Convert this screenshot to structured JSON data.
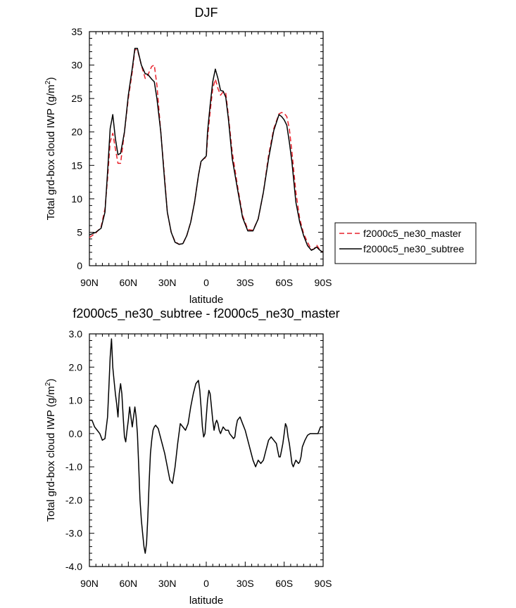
{
  "chart_data": [
    {
      "type": "line",
      "title": "DJF",
      "xlabel": "latitude",
      "ylabel": "Total grd-box cloud IWP (g/m~S~2~N~)",
      "xlim": [
        90,
        -90
      ],
      "ylim": [
        0,
        35
      ],
      "x_ticks": [
        90,
        60,
        30,
        0,
        -30,
        -60,
        -90
      ],
      "x_tick_labels": [
        "90N",
        "60N",
        "30N",
        "0",
        "30S",
        "60S",
        "90S"
      ],
      "y_ticks": [
        0,
        5,
        10,
        15,
        20,
        25,
        30,
        35
      ],
      "y_tick_labels": [
        "0",
        "5",
        "10",
        "15",
        "20",
        "25",
        "30",
        "35"
      ],
      "legend": "right",
      "grid": false,
      "series": [
        {
          "name": "f2000c5_ne30_master",
          "color": "#e8202a",
          "dash": "dashed",
          "x": [
            90,
            85,
            81,
            78,
            76,
            74,
            72,
            70,
            68,
            66,
            63,
            60,
            57,
            55,
            53,
            50,
            47,
            45,
            42,
            40,
            38,
            35,
            32,
            30,
            27,
            24,
            21,
            18,
            15,
            12,
            9,
            6,
            4,
            2,
            0,
            -1,
            -3,
            -5,
            -7,
            -9,
            -11,
            -13,
            -15,
            -17,
            -20,
            -24,
            -28,
            -32,
            -36,
            -40,
            -44,
            -48,
            -52,
            -56,
            -58,
            -60,
            -62,
            -64,
            -66,
            -69,
            -72,
            -75,
            -78,
            -81,
            -83,
            -85,
            -87,
            -89,
            -90
          ],
          "y": [
            4.2,
            4.9,
            5.8,
            8.5,
            13.0,
            18.5,
            19.8,
            17.5,
            15.3,
            15.3,
            20.0,
            25.0,
            29.0,
            32.3,
            32.3,
            30.0,
            28.0,
            28.5,
            29.8,
            30.0,
            27.0,
            20.0,
            13.0,
            8.0,
            5.0,
            3.6,
            3.2,
            3.3,
            4.5,
            6.5,
            9.5,
            13.5,
            15.6,
            16.0,
            16.2,
            19.0,
            23.0,
            26.5,
            27.9,
            26.5,
            25.5,
            26.0,
            25.8,
            22.5,
            17.0,
            12.0,
            7.5,
            5.4,
            5.3,
            7.0,
            11.0,
            16.5,
            20.5,
            22.7,
            22.9,
            22.8,
            22.3,
            20.5,
            17.0,
            11.0,
            7.0,
            4.8,
            3.5,
            2.4,
            2.5,
            3.1,
            2.5,
            2.1,
            2.1
          ]
        },
        {
          "name": "f2000c5_ne30_subtree",
          "color": "#000000",
          "dash": "solid",
          "x": [
            90,
            85,
            81,
            78,
            76,
            74,
            72,
            70,
            68,
            66,
            63,
            60,
            57,
            55,
            53,
            50,
            47,
            45,
            42,
            40,
            38,
            35,
            32,
            30,
            27,
            24,
            21,
            18,
            15,
            12,
            9,
            6,
            4,
            2,
            0,
            -1,
            -3,
            -5,
            -7,
            -9,
            -11,
            -13,
            -15,
            -17,
            -20,
            -24,
            -28,
            -32,
            -36,
            -40,
            -44,
            -48,
            -52,
            -56,
            -58,
            -60,
            -62,
            -64,
            -66,
            -69,
            -72,
            -75,
            -78,
            -81,
            -83,
            -85,
            -87,
            -89,
            -90
          ],
          "y": [
            4.6,
            5.0,
            5.6,
            8.0,
            14.0,
            20.5,
            22.6,
            19.0,
            16.6,
            16.8,
            20.0,
            25.5,
            29.5,
            32.5,
            32.5,
            30.0,
            28.7,
            28.6,
            27.9,
            27.5,
            25.0,
            20.0,
            12.5,
            8.0,
            5.0,
            3.5,
            3.2,
            3.3,
            4.5,
            6.5,
            9.5,
            13.5,
            15.6,
            16.0,
            16.4,
            20.0,
            24.0,
            27.5,
            29.4,
            28.0,
            26.2,
            26.1,
            25.2,
            22.0,
            16.0,
            11.5,
            7.2,
            5.2,
            5.2,
            7.0,
            11.0,
            16.0,
            20.2,
            22.6,
            22.3,
            21.8,
            21.0,
            18.5,
            15.5,
            9.5,
            6.5,
            4.5,
            3.0,
            2.3,
            2.5,
            2.8,
            2.4,
            2.1,
            2.1
          ]
        }
      ]
    },
    {
      "type": "line",
      "title": "f2000c5_ne30_subtree - f2000c5_ne30_master",
      "xlabel": "latitude",
      "ylabel": "Total grd-box cloud IWP (g/m~S~2~N~)",
      "xlim": [
        90,
        -90
      ],
      "ylim": [
        -4,
        3
      ],
      "x_ticks": [
        90,
        60,
        30,
        0,
        -30,
        -60,
        -90
      ],
      "x_tick_labels": [
        "90N",
        "60N",
        "30N",
        "0",
        "30S",
        "60S",
        "90S"
      ],
      "y_ticks": [
        -4,
        -3,
        -2,
        -1,
        0,
        1,
        2,
        3
      ],
      "y_tick_labels": [
        "-4.0",
        "-3.0",
        "-2.0",
        "-1.0",
        "0.0",
        "1.0",
        "2.0",
        "3.0"
      ],
      "grid": false,
      "series": [
        {
          "color": "#000000",
          "dash": "solid",
          "x": [
            90,
            88,
            86,
            84,
            82,
            80,
            78,
            76,
            75,
            74,
            73,
            72,
            71,
            70,
            69,
            68,
            67,
            66,
            65,
            64,
            63,
            62,
            61,
            60,
            59,
            58,
            57,
            56,
            55,
            54,
            53,
            52,
            51,
            50,
            49,
            48,
            47,
            46,
            45,
            44,
            43,
            42,
            41,
            40,
            39,
            38,
            37,
            36,
            34,
            32,
            30,
            28,
            26,
            24,
            22,
            20,
            18,
            16,
            14,
            12,
            10,
            8,
            6,
            5,
            4,
            3,
            2,
            1,
            0,
            -1,
            -2,
            -3,
            -4,
            -5,
            -6,
            -7,
            -8,
            -9,
            -10,
            -11,
            -12,
            -13,
            -14,
            -15,
            -16,
            -17,
            -18,
            -19,
            -20,
            -21,
            -22,
            -23,
            -24,
            -26,
            -28,
            -30,
            -32,
            -34,
            -36,
            -38,
            -40,
            -42,
            -44,
            -46,
            -48,
            -50,
            -52,
            -54,
            -55,
            -56,
            -57,
            -58,
            -59,
            -60,
            -61,
            -62,
            -63,
            -64,
            -65,
            -66,
            -67,
            -68,
            -69,
            -70,
            -71,
            -72,
            -73,
            -74,
            -76,
            -78,
            -80,
            -82,
            -84,
            -86,
            -88,
            -90
          ],
          "y": [
            0.4,
            0.4,
            0.2,
            0.1,
            0.0,
            -0.2,
            -0.15,
            0.5,
            1.4,
            2.3,
            2.85,
            2.0,
            1.6,
            1.2,
            0.9,
            0.5,
            1.2,
            1.5,
            1.2,
            0.5,
            -0.1,
            -0.25,
            0.1,
            0.4,
            0.8,
            0.5,
            0.2,
            0.5,
            0.8,
            0.5,
            0.0,
            -1.0,
            -2.0,
            -2.6,
            -3.0,
            -3.4,
            -3.6,
            -3.3,
            -2.5,
            -1.5,
            -0.6,
            -0.2,
            0.1,
            0.2,
            0.25,
            0.2,
            0.15,
            0.0,
            -0.3,
            -0.6,
            -1.0,
            -1.4,
            -1.5,
            -1.0,
            -0.3,
            0.3,
            0.2,
            0.1,
            0.3,
            0.8,
            1.2,
            1.5,
            1.6,
            1.3,
            0.8,
            0.2,
            -0.1,
            0.0,
            0.5,
            1.0,
            1.3,
            1.2,
            0.8,
            0.4,
            0.1,
            0.3,
            0.4,
            0.3,
            0.1,
            0.0,
            0.1,
            0.2,
            0.15,
            0.1,
            0.1,
            0.1,
            0.0,
            -0.05,
            -0.1,
            -0.15,
            -0.1,
            0.2,
            0.4,
            0.5,
            0.3,
            0.1,
            -0.2,
            -0.5,
            -0.8,
            -1.0,
            -0.8,
            -0.9,
            -0.8,
            -0.5,
            -0.2,
            -0.1,
            -0.2,
            -0.3,
            -0.5,
            -0.7,
            -0.7,
            -0.5,
            -0.3,
            0.0,
            0.3,
            0.2,
            -0.1,
            -0.3,
            -0.6,
            -0.9,
            -1.0,
            -0.9,
            -0.8,
            -0.85,
            -0.9,
            -0.85,
            -0.7,
            -0.4,
            -0.2,
            -0.05,
            0.0,
            0.0,
            0.0,
            0.0,
            0.2,
            0.2
          ]
        }
      ]
    }
  ]
}
